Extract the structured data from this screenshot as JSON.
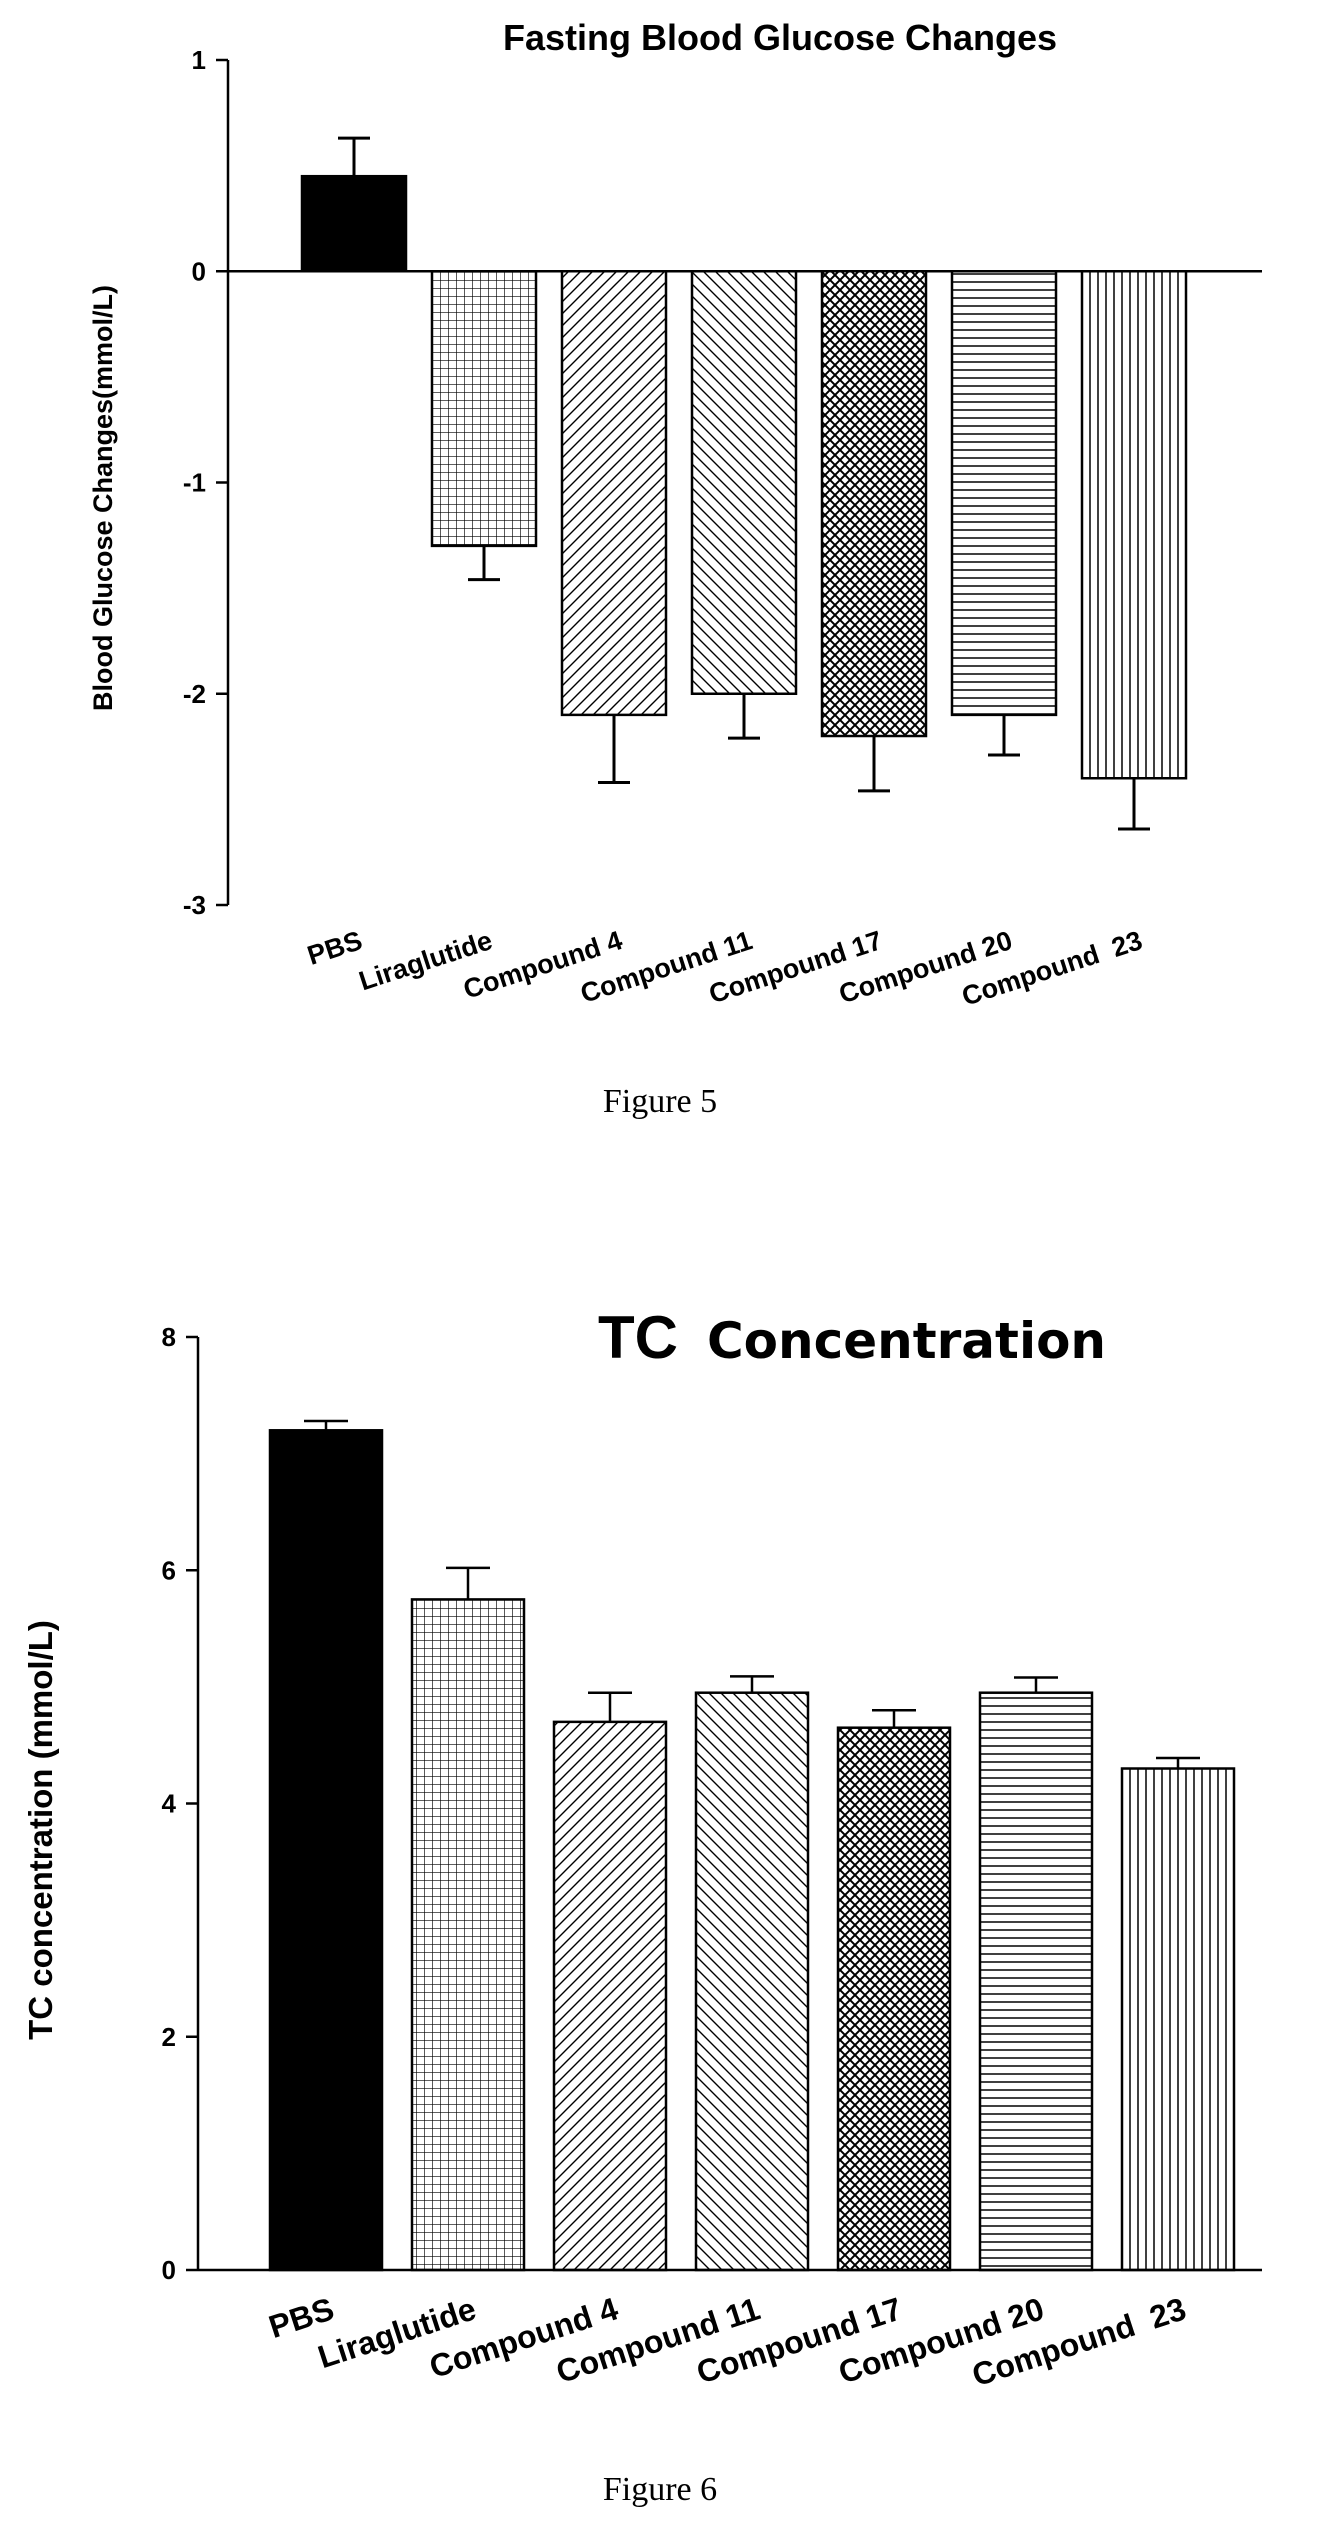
{
  "figures": [
    {
      "caption": "Figure 5"
    },
    {
      "caption": "Figure 6"
    }
  ],
  "chart_data": [
    {
      "type": "bar",
      "title": "Fasting Blood Glucose Changes",
      "xlabel": "",
      "ylabel": "Blood Glucose Changes(mmol/L)",
      "ylim": [
        -3,
        1
      ],
      "yticks": [
        "1",
        "0",
        "-1",
        "-2",
        "-3"
      ],
      "categories": [
        "PBS",
        "Liraglutide",
        "Compound 4",
        "Compound 11",
        "Compound 17",
        "Compound 20",
        "Compound  23"
      ],
      "values": [
        0.45,
        -1.3,
        -2.1,
        -2.0,
        -2.2,
        -2.1,
        -2.4
      ],
      "errors": [
        0.18,
        0.16,
        0.32,
        0.21,
        0.26,
        0.19,
        0.24
      ],
      "patterns": [
        "solid",
        "grid",
        "diag-right",
        "diag-left",
        "cross",
        "horizontal",
        "vertical"
      ],
      "grid": false
    },
    {
      "type": "bar",
      "title_part1": "TC",
      "title_part2": "Concentration",
      "xlabel": "",
      "ylabel": "TC concentration (mmol/L)",
      "ylim": [
        0,
        8
      ],
      "yticks": [
        "8",
        "6",
        "4",
        "2",
        "0"
      ],
      "categories": [
        "PBS",
        "Liraglutide",
        "Compound 4",
        "Compound 11",
        "Compound 17",
        "Compound 20",
        "Compound  23"
      ],
      "values": [
        7.2,
        5.75,
        4.7,
        4.95,
        4.65,
        4.95,
        4.3
      ],
      "errors": [
        0.08,
        0.27,
        0.25,
        0.14,
        0.15,
        0.13,
        0.09
      ],
      "patterns": [
        "solid",
        "grid",
        "diag-right",
        "diag-left",
        "cross",
        "horizontal",
        "vertical"
      ],
      "grid": false
    }
  ]
}
